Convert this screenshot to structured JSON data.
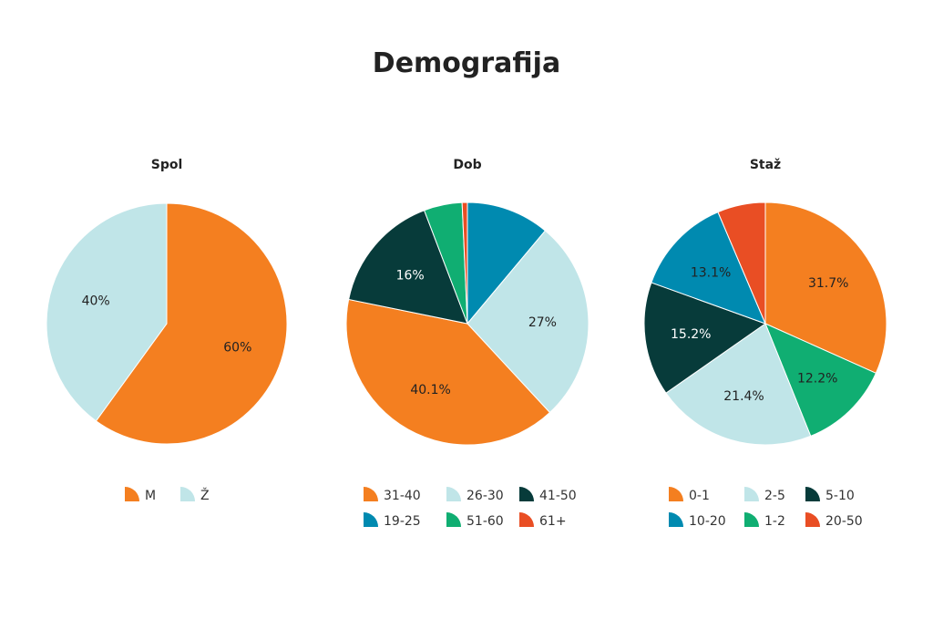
{
  "title": "Demografija",
  "colors": {
    "orange": "#F47F20",
    "light_blue": "#C0E5E8",
    "dark_teal": "#073B3A",
    "blue": "#008AB0",
    "green": "#10AE72",
    "red": "#E94E24"
  },
  "chart_data": [
    {
      "type": "pie",
      "title": "Spol",
      "start": "top",
      "direction": "clockwise",
      "slices": [
        {
          "label": "M",
          "value": 60,
          "data_label": "60%",
          "color": "#F47F20",
          "label_color": "#222"
        },
        {
          "label": "Ž",
          "value": 40,
          "data_label": "40%",
          "color": "#C0E5E8",
          "label_color": "#222"
        }
      ],
      "legend": [
        "M",
        "Ž"
      ]
    },
    {
      "type": "pie",
      "title": "Dob",
      "start": "top",
      "direction": "clockwise",
      "slices": [
        {
          "label": "19-25",
          "value": 11.1,
          "data_label": "",
          "color": "#008AB0",
          "label_color": "#fff"
        },
        {
          "label": "26-30",
          "value": 27,
          "data_label": "27%",
          "color": "#C0E5E8",
          "label_color": "#222"
        },
        {
          "label": "31-40",
          "value": 40.1,
          "data_label": "40.1%",
          "color": "#F47F20",
          "label_color": "#222"
        },
        {
          "label": "41-50",
          "value": 16,
          "data_label": "16%",
          "color": "#073B3A",
          "label_color": "#fff"
        },
        {
          "label": "51-60",
          "value": 5.1,
          "data_label": "",
          "color": "#10AE72",
          "label_color": "#222"
        },
        {
          "label": "61+",
          "value": 0.7,
          "data_label": "",
          "color": "#E94E24",
          "label_color": "#222"
        }
      ],
      "legend": [
        "31-40",
        "26-30",
        "41-50",
        "19-25",
        "51-60",
        "61+"
      ]
    },
    {
      "type": "pie",
      "title": "Staž",
      "start": "top",
      "direction": "clockwise",
      "slices": [
        {
          "label": "0-1",
          "value": 31.7,
          "data_label": "31.7%",
          "color": "#F47F20",
          "label_color": "#222"
        },
        {
          "label": "1-2",
          "value": 12.2,
          "data_label": "12.2%",
          "color": "#10AE72",
          "label_color": "#222"
        },
        {
          "label": "2-5",
          "value": 21.4,
          "data_label": "21.4%",
          "color": "#C0E5E8",
          "label_color": "#222"
        },
        {
          "label": "5-10",
          "value": 15.2,
          "data_label": "15.2%",
          "color": "#073B3A",
          "label_color": "#fff"
        },
        {
          "label": "10-20",
          "value": 13.1,
          "data_label": "13.1%",
          "color": "#008AB0",
          "label_color": "#222"
        },
        {
          "label": "20-50",
          "value": 6.4,
          "data_label": "",
          "color": "#E94E24",
          "label_color": "#222"
        }
      ],
      "legend": [
        "0-1",
        "2-5",
        "5-10",
        "10-20",
        "1-2",
        "20-50"
      ]
    }
  ]
}
